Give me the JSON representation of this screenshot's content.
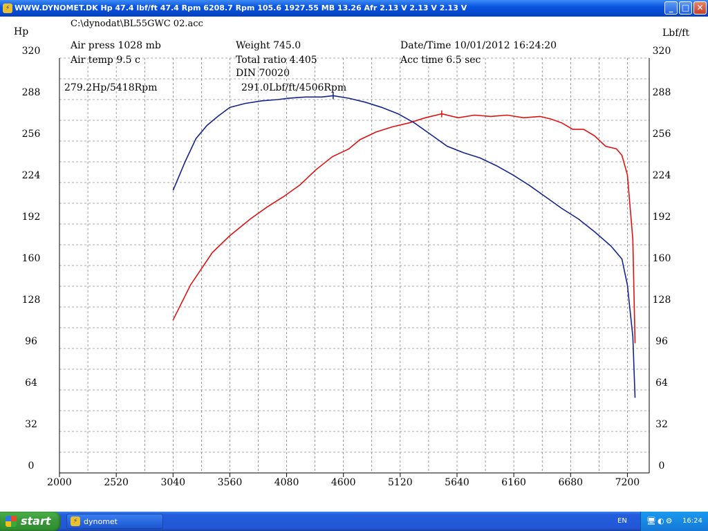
{
  "window": {
    "title": "WWW.DYNOMET.DK Hp 47.4 lbf/ft 47.4 Rpm 6208.7 Rpm 105.6   1927.55 MB 13.26 Afr 2.13 V 2.13 V 2.13 V",
    "icon": "dyno-app-icon",
    "controls": {
      "minimize": "_",
      "maximize": "□",
      "close": "✕"
    }
  },
  "info": {
    "file": "C:\\dynodat\\BL55GWC 02.acc",
    "air_press": "Air press  1028 mb",
    "air_temp": "Air temp   9.5 c",
    "weight": "Weight    745.0",
    "total_ratio": "Total ratio 4.405",
    "din": "DIN 70020",
    "date_time": "Date/Time  10/01/2012 16:24:20",
    "acc_time": "Acc time   6.5 sec"
  },
  "chart_data": {
    "type": "line",
    "left_axis_label": "Hp",
    "right_axis_label": "Lbf/ft",
    "xlim": [
      2000,
      7400
    ],
    "ylim": [
      0,
      320
    ],
    "x_ticks": [
      2000,
      2520,
      3040,
      3560,
      4080,
      4600,
      5120,
      5640,
      6160,
      6680,
      7200
    ],
    "y_ticks": [
      0,
      32,
      64,
      96,
      128,
      160,
      192,
      224,
      256,
      288,
      320
    ],
    "grid": true,
    "series": [
      {
        "name": "Hp",
        "color": "#e01010",
        "peak_label": "279.2Hp/5418Rpm",
        "x": [
          3040,
          3200,
          3400,
          3560,
          3750,
          3900,
          4050,
          4200,
          4350,
          4500,
          4650,
          4750,
          4900,
          5050,
          5200,
          5350,
          5500,
          5650,
          5800,
          5950,
          6100,
          6250,
          6400,
          6500,
          6600,
          6700,
          6800,
          6900,
          7000,
          7100,
          7150,
          7200,
          7250,
          7270
        ],
        "values": [
          118,
          145,
          170,
          183,
          196,
          205,
          213,
          222,
          234,
          244,
          250,
          257,
          263,
          267,
          270,
          274,
          277,
          274,
          276,
          275,
          276,
          274,
          275,
          273,
          270,
          265,
          265,
          260,
          252,
          250,
          245,
          230,
          180,
          100
        ]
      },
      {
        "name": "Lbf/ft",
        "color": "#12238f",
        "peak_label": "291.0Lbf/ft/4506Rpm",
        "x": [
          3040,
          3150,
          3250,
          3350,
          3450,
          3560,
          3700,
          3850,
          4000,
          4100,
          4250,
          4400,
          4506,
          4650,
          4800,
          4950,
          5100,
          5250,
          5400,
          5550,
          5700,
          5850,
          6000,
          6150,
          6300,
          6450,
          6600,
          6750,
          6900,
          7050,
          7150,
          7200,
          7250,
          7270
        ],
        "values": [
          218,
          240,
          258,
          268,
          275,
          282,
          285,
          287,
          288,
          289,
          290,
          290,
          291,
          289,
          286,
          282,
          277,
          270,
          261,
          252,
          247,
          243,
          237,
          230,
          222,
          213,
          204,
          196,
          186,
          175,
          165,
          145,
          105,
          58
        ]
      }
    ]
  },
  "taskbar": {
    "start_label": "start",
    "task_label": "dynomet",
    "language": "EN",
    "clock": "16:24"
  }
}
